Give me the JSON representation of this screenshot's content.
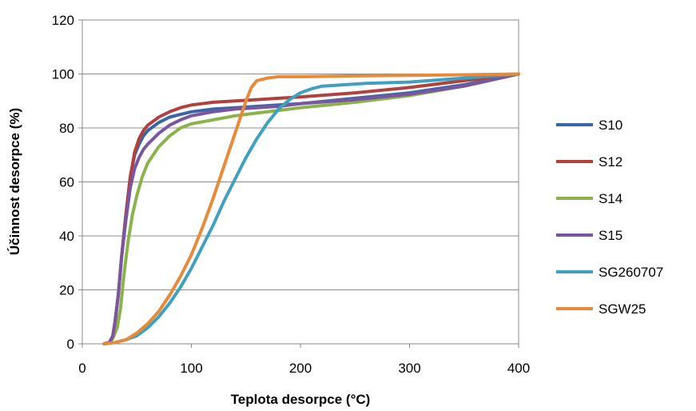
{
  "chart_data": {
    "type": "line",
    "title": "",
    "xlabel": "Teplota desorpce (°C)",
    "ylabel": "Účinnost desorpce (%)",
    "xlim": [
      0,
      400
    ],
    "ylim": [
      0,
      120
    ],
    "x_ticks": [
      0,
      100,
      200,
      300,
      400
    ],
    "y_ticks": [
      0,
      20,
      40,
      60,
      80,
      100,
      120
    ],
    "grid": "horizontal",
    "legend_position": "right",
    "series": [
      {
        "name": "S10",
        "color": "#3b66a6",
        "points": [
          [
            20,
            0
          ],
          [
            25,
            0.5
          ],
          [
            28,
            3
          ],
          [
            30,
            8
          ],
          [
            33,
            18
          ],
          [
            36,
            32
          ],
          [
            40,
            48
          ],
          [
            44,
            62
          ],
          [
            48,
            70
          ],
          [
            52,
            74
          ],
          [
            56,
            77
          ],
          [
            60,
            79
          ],
          [
            70,
            82
          ],
          [
            80,
            84
          ],
          [
            90,
            85
          ],
          [
            100,
            86
          ],
          [
            120,
            87
          ],
          [
            140,
            87.5
          ],
          [
            160,
            88
          ],
          [
            180,
            88.5
          ],
          [
            200,
            89
          ],
          [
            250,
            91
          ],
          [
            300,
            93
          ],
          [
            350,
            96
          ],
          [
            400,
            100
          ]
        ]
      },
      {
        "name": "S12",
        "color": "#b0413e",
        "points": [
          [
            20,
            0
          ],
          [
            25,
            0.5
          ],
          [
            28,
            3
          ],
          [
            30,
            8
          ],
          [
            33,
            18
          ],
          [
            36,
            32
          ],
          [
            40,
            48
          ],
          [
            44,
            62
          ],
          [
            48,
            71
          ],
          [
            52,
            76
          ],
          [
            56,
            79
          ],
          [
            60,
            81
          ],
          [
            70,
            84
          ],
          [
            80,
            86
          ],
          [
            90,
            87.5
          ],
          [
            100,
            88.5
          ],
          [
            120,
            89.5
          ],
          [
            140,
            90
          ],
          [
            160,
            90.5
          ],
          [
            180,
            91
          ],
          [
            200,
            91.5
          ],
          [
            250,
            93
          ],
          [
            300,
            95
          ],
          [
            350,
            97.5
          ],
          [
            400,
            100
          ]
        ]
      },
      {
        "name": "S14",
        "color": "#8cb24b",
        "points": [
          [
            20,
            0
          ],
          [
            25,
            0.5
          ],
          [
            28,
            2
          ],
          [
            32,
            6
          ],
          [
            35,
            13
          ],
          [
            38,
            25
          ],
          [
            42,
            38
          ],
          [
            46,
            48
          ],
          [
            50,
            55
          ],
          [
            55,
            62
          ],
          [
            60,
            67
          ],
          [
            70,
            73
          ],
          [
            80,
            77
          ],
          [
            90,
            80
          ],
          [
            100,
            81.5
          ],
          [
            120,
            83
          ],
          [
            140,
            84.5
          ],
          [
            160,
            85.5
          ],
          [
            180,
            86.5
          ],
          [
            200,
            87.5
          ],
          [
            250,
            89.5
          ],
          [
            300,
            92
          ],
          [
            350,
            95.5
          ],
          [
            400,
            100
          ]
        ]
      },
      {
        "name": "S15",
        "color": "#7a55a0",
        "points": [
          [
            20,
            0
          ],
          [
            25,
            0.5
          ],
          [
            28,
            3
          ],
          [
            30,
            8
          ],
          [
            33,
            18
          ],
          [
            36,
            32
          ],
          [
            40,
            46
          ],
          [
            44,
            58
          ],
          [
            48,
            65
          ],
          [
            52,
            69
          ],
          [
            56,
            72
          ],
          [
            60,
            74
          ],
          [
            70,
            78
          ],
          [
            80,
            81
          ],
          [
            90,
            83
          ],
          [
            100,
            84.5
          ],
          [
            120,
            86
          ],
          [
            140,
            87
          ],
          [
            160,
            87.5
          ],
          [
            180,
            88
          ],
          [
            200,
            89
          ],
          [
            250,
            90.5
          ],
          [
            300,
            92.5
          ],
          [
            350,
            95.5
          ],
          [
            400,
            100
          ]
        ]
      },
      {
        "name": "SG260707",
        "color": "#3fa0c0",
        "points": [
          [
            20,
            0
          ],
          [
            30,
            0.5
          ],
          [
            40,
            1.5
          ],
          [
            50,
            3
          ],
          [
            60,
            6
          ],
          [
            70,
            10
          ],
          [
            80,
            15
          ],
          [
            90,
            21
          ],
          [
            100,
            28
          ],
          [
            110,
            36
          ],
          [
            120,
            44
          ],
          [
            130,
            53
          ],
          [
            140,
            61
          ],
          [
            150,
            69
          ],
          [
            160,
            76
          ],
          [
            170,
            82
          ],
          [
            180,
            87
          ],
          [
            190,
            90.5
          ],
          [
            200,
            93
          ],
          [
            210,
            94.5
          ],
          [
            220,
            95.5
          ],
          [
            240,
            96
          ],
          [
            260,
            96.5
          ],
          [
            300,
            97
          ],
          [
            350,
            98.5
          ],
          [
            400,
            100
          ]
        ]
      },
      {
        "name": "SGW25",
        "color": "#e68a3b",
        "points": [
          [
            20,
            0
          ],
          [
            30,
            0.5
          ],
          [
            40,
            1.5
          ],
          [
            50,
            4
          ],
          [
            60,
            7.5
          ],
          [
            70,
            12
          ],
          [
            80,
            18
          ],
          [
            90,
            25
          ],
          [
            100,
            33
          ],
          [
            110,
            43
          ],
          [
            120,
            54
          ],
          [
            130,
            66
          ],
          [
            140,
            78
          ],
          [
            150,
            90
          ],
          [
            155,
            95
          ],
          [
            160,
            97.5
          ],
          [
            170,
            98.5
          ],
          [
            180,
            99
          ],
          [
            200,
            99
          ],
          [
            250,
            99.3
          ],
          [
            300,
            99.5
          ],
          [
            350,
            99.7
          ],
          [
            400,
            100
          ]
        ]
      }
    ]
  }
}
